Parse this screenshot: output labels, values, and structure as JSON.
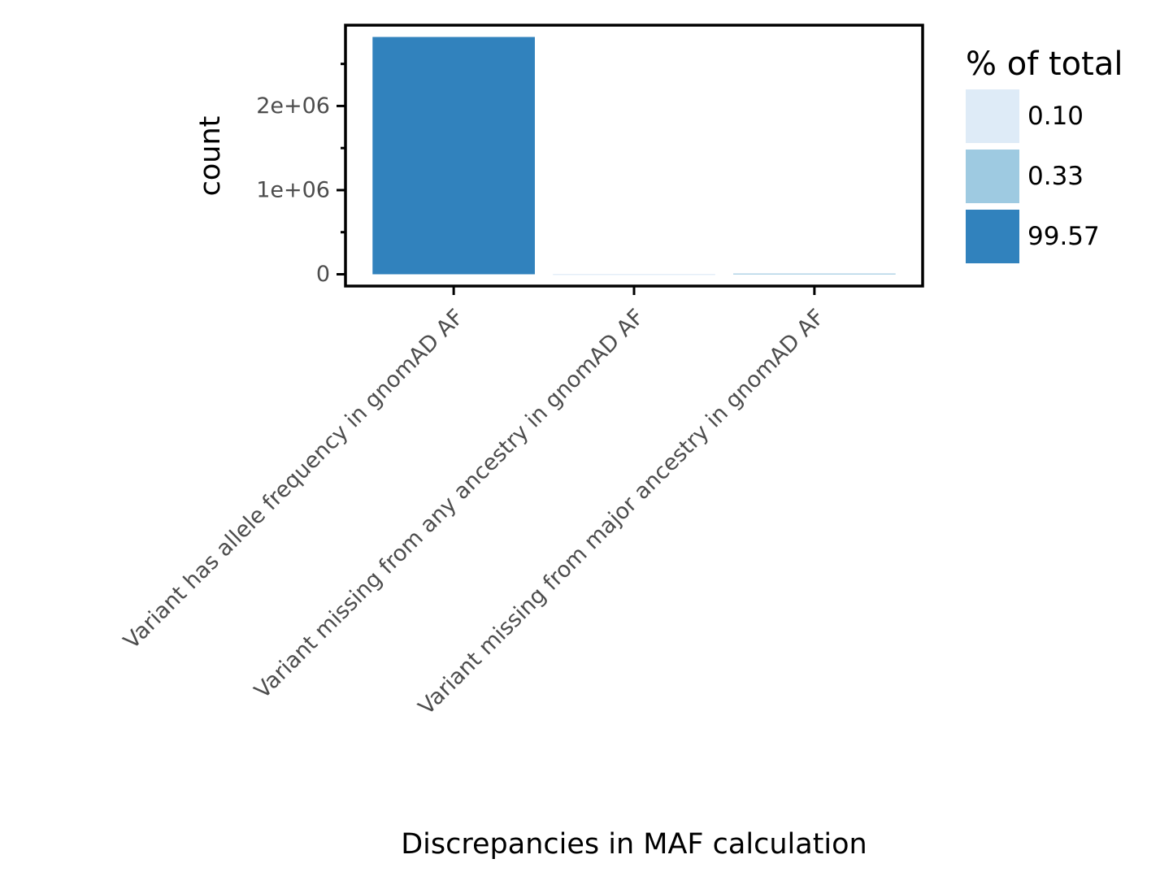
{
  "chart_data": {
    "type": "bar",
    "categories": [
      "Variant has allele frequency in gnomAD AF",
      "Variant missing from any ancestry in gnomAD AF",
      "Variant missing from major ancestry in gnomAD AF"
    ],
    "values": [
      2820000,
      2800,
      9300
    ],
    "percent_of_total": [
      "99.57",
      "0.10",
      "0.33"
    ],
    "bar_colors": [
      "#3182bd",
      "#deebf7",
      "#9ecae1"
    ],
    "xlabel": "Discrepancies in MAF calculation",
    "ylabel": "count",
    "ylim": [
      -140000,
      2960000
    ],
    "y_major_ticks": [
      0,
      1000000,
      2000000
    ],
    "y_tick_labels": [
      "0",
      "1e+06",
      "2e+06"
    ],
    "y_minor_ticks": [
      500000,
      1500000,
      2500000
    ],
    "grid": false,
    "legend": {
      "title": "% of total",
      "position": "right",
      "entries": [
        {
          "label": "0.10",
          "color": "#deebf7"
        },
        {
          "label": "0.33",
          "color": "#9ecae1"
        },
        {
          "label": "99.57",
          "color": "#3182bd"
        }
      ]
    }
  }
}
